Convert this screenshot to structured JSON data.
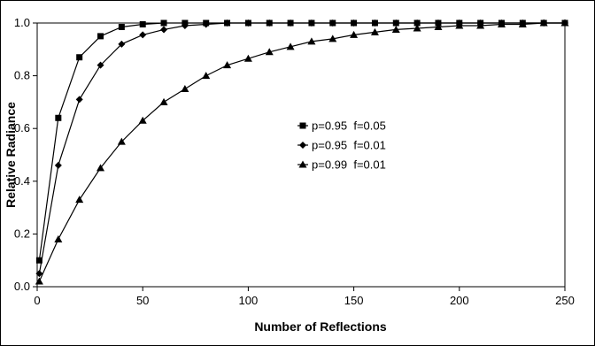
{
  "chart_data": {
    "type": "line",
    "title": "",
    "xlabel": "Number of Reflections",
    "ylabel": "Relative Radiance",
    "xlim": [
      0,
      250
    ],
    "ylim": [
      0,
      1.0
    ],
    "x_ticks": [
      0,
      50,
      100,
      150,
      200,
      250
    ],
    "y_ticks": [
      0.0,
      0.2,
      0.4,
      0.6,
      0.8,
      1.0
    ],
    "x_tick_labels": [
      "0",
      "50",
      "100",
      "150",
      "200",
      "250"
    ],
    "y_tick_labels": [
      "0.0",
      "0.2",
      "0.4",
      "0.6",
      "0.8",
      "1.0"
    ],
    "grid": false,
    "legend_placement": "center-right",
    "series": [
      {
        "name": "p=0.95  f=0.05",
        "marker": "square",
        "x": [
          1,
          10,
          20,
          30,
          40,
          50,
          60,
          70,
          80,
          90,
          100,
          110,
          120,
          130,
          140,
          150,
          160,
          170,
          180,
          190,
          200,
          210,
          220,
          230,
          240,
          250
        ],
        "y": [
          0.1,
          0.64,
          0.87,
          0.95,
          0.985,
          0.995,
          1.0,
          1.0,
          1.0,
          1.0,
          1.0,
          1.0,
          1.0,
          1.0,
          1.0,
          1.0,
          1.0,
          1.0,
          1.0,
          1.0,
          1.0,
          1.0,
          1.0,
          1.0,
          1.0,
          1.0
        ]
      },
      {
        "name": "p=0.95  f=0.01",
        "marker": "diamond",
        "x": [
          1,
          10,
          20,
          30,
          40,
          50,
          60,
          70,
          80,
          90,
          100,
          110,
          120,
          130,
          140,
          150,
          160,
          170,
          180,
          190,
          200,
          210,
          220,
          230,
          240,
          250
        ],
        "y": [
          0.05,
          0.46,
          0.71,
          0.84,
          0.92,
          0.955,
          0.975,
          0.99,
          0.995,
          1.0,
          1.0,
          1.0,
          1.0,
          1.0,
          1.0,
          1.0,
          1.0,
          1.0,
          1.0,
          1.0,
          1.0,
          1.0,
          1.0,
          1.0,
          1.0,
          1.0
        ]
      },
      {
        "name": "p=0.99  f=0.01",
        "marker": "triangle",
        "x": [
          1,
          10,
          20,
          30,
          40,
          50,
          60,
          70,
          80,
          90,
          100,
          110,
          120,
          130,
          140,
          150,
          160,
          170,
          180,
          190,
          200,
          210,
          220,
          230,
          240,
          250
        ],
        "y": [
          0.02,
          0.18,
          0.33,
          0.45,
          0.55,
          0.63,
          0.7,
          0.75,
          0.8,
          0.84,
          0.865,
          0.89,
          0.91,
          0.93,
          0.94,
          0.955,
          0.965,
          0.975,
          0.98,
          0.985,
          0.99,
          0.99,
          0.995,
          0.995,
          1.0,
          1.0
        ]
      }
    ]
  }
}
